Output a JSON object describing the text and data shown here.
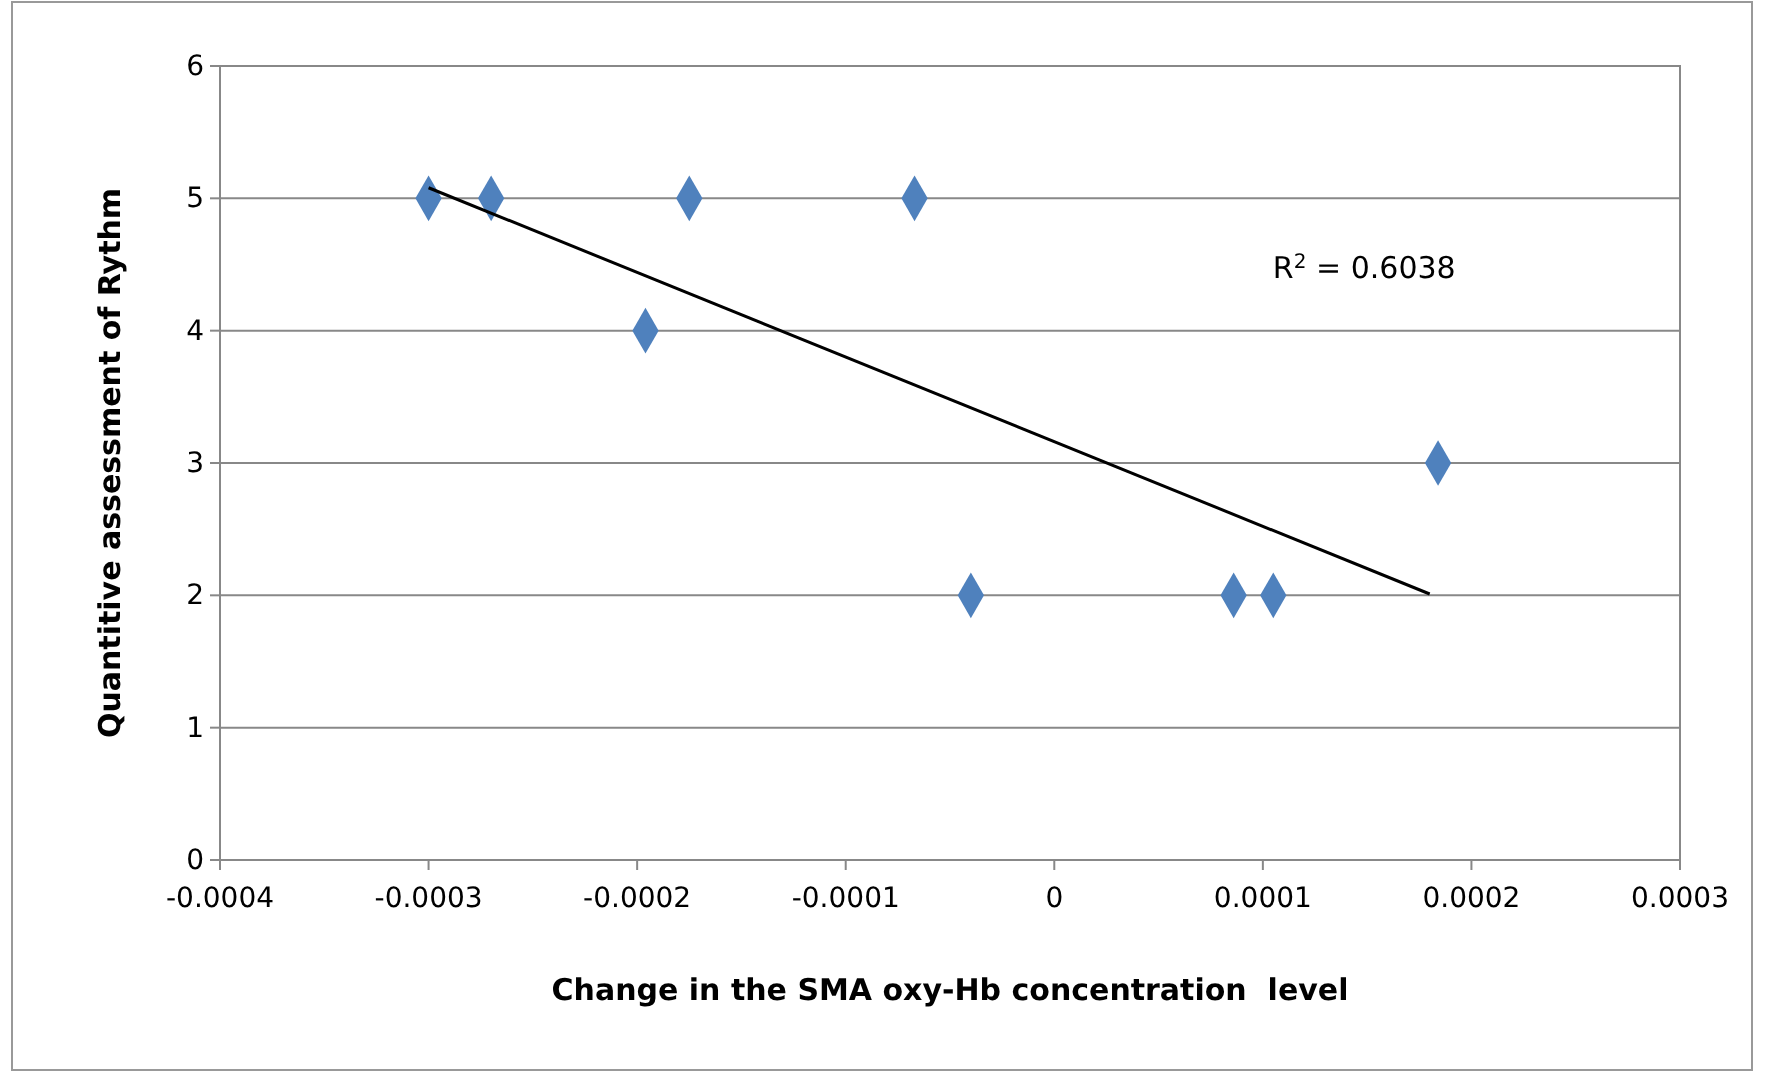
{
  "chart_data": {
    "type": "scatter",
    "xlabel": "Change in the SMA oxy-Hb concentration  level",
    "ylabel": "Quantitive assessment of Rythm",
    "xlim": [
      -0.0004,
      0.0003
    ],
    "xticks": [
      -0.0004,
      -0.0003,
      -0.0002,
      -0.0001,
      0,
      0.0001,
      0.0002,
      0.0003
    ],
    "ylim": [
      0,
      6
    ],
    "yticks": [
      0,
      1,
      2,
      3,
      4,
      5,
      6
    ],
    "grid": "y",
    "annotations": [
      "R$^{2}$ = 0.6038"
    ],
    "series": [
      {
        "marker": "diamond",
        "color": "#4f81bd",
        "x": [
          -0.0003,
          -0.00027,
          -0.000175,
          -6.7e-05,
          -0.000196,
          -4e-05,
          8.6e-05,
          0.000105,
          0.000184
        ],
        "values": [
          5,
          5,
          5,
          5,
          4,
          2,
          2,
          2,
          3
        ]
      },
      {
        "type": "line",
        "marker": "none",
        "color": "#000000",
        "x": [
          -0.0003,
          0.00018
        ],
        "values": [
          5.08,
          2.01
        ]
      }
    ]
  }
}
